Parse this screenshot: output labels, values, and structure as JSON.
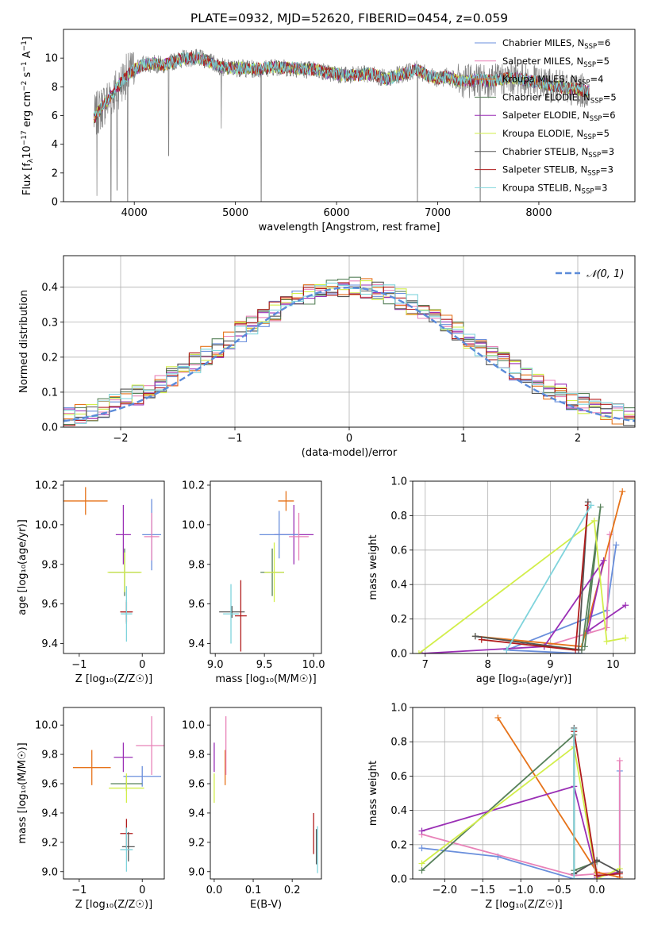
{
  "title": "PLATE=0932, MJD=52620, FIBERID=0454, z=0.059",
  "colors": {
    "chabrier_miles": "#6a8fdc",
    "salpeter_miles": "#e882b8",
    "kroupa_miles": "#e6731a",
    "chabrier_elodie": "#57815a",
    "salpeter_elodie": "#9a2fb5",
    "kroupa_elodie": "#d2ee4a",
    "chabrier_stelib": "#555555",
    "salpeter_stelib": "#b01c1c",
    "kroupa_stelib": "#7fd4dc",
    "data": "#808080",
    "normal": "#5b8bd9"
  },
  "chart_data": [
    {
      "id": "spectrum",
      "type": "line",
      "title": "PLATE=0932, MJD=52620, FIBERID=0454, z=0.059",
      "xlabel": "wavelength [Angstrom, rest frame]",
      "ylabel_parts": [
        "Flux [f",
        "λ",
        "10",
        "−17",
        " erg cm",
        "−2",
        " s",
        "−1",
        " A",
        "−1",
        "]"
      ],
      "xlim": [
        3300,
        8950
      ],
      "ylim": [
        0,
        12
      ],
      "xticks": [
        "4000",
        "5000",
        "6000",
        "7000",
        "8000"
      ],
      "yticks": [
        "0",
        "2",
        "4",
        "6",
        "8",
        "10"
      ],
      "legend_position": "right",
      "legend": [
        {
          "name": "Chabrier MILES",
          "n": "6",
          "color": "#6a8fdc"
        },
        {
          "name": "Salpeter MILES",
          "n": "5",
          "color": "#e882b8"
        },
        {
          "name": "Kroupa MILES",
          "n": "4",
          "color": "#e6731a"
        },
        {
          "name": "Chabrier ELODIE",
          "n": "5",
          "color": "#57815a"
        },
        {
          "name": "Salpeter ELODIE",
          "n": "6",
          "color": "#9a2fb5"
        },
        {
          "name": "Kroupa ELODIE",
          "n": "5",
          "color": "#d2ee4a"
        },
        {
          "name": "Chabrier STELIB",
          "n": "3",
          "color": "#555555"
        },
        {
          "name": "Salpeter STELIB",
          "n": "3",
          "color": "#b01c1c"
        },
        {
          "name": "Kroupa STELIB",
          "n": "3",
          "color": "#7fd4dc"
        }
      ],
      "continuum": [
        [
          3600,
          5.8
        ],
        [
          3700,
          6.8
        ],
        [
          3800,
          7.6
        ],
        [
          3900,
          8.6
        ],
        [
          4000,
          9.2
        ],
        [
          4100,
          9.6
        ],
        [
          4200,
          9.6
        ],
        [
          4300,
          9.5
        ],
        [
          4400,
          9.8
        ],
        [
          4500,
          10.0
        ],
        [
          4600,
          10.0
        ],
        [
          4700,
          9.9
        ],
        [
          4800,
          9.6
        ],
        [
          4900,
          9.3
        ],
        [
          5000,
          9.3
        ],
        [
          5100,
          9.3
        ],
        [
          5200,
          9.2
        ],
        [
          5300,
          9.3
        ],
        [
          5400,
          9.4
        ],
        [
          5500,
          9.3
        ],
        [
          5600,
          9.3
        ],
        [
          5700,
          9.2
        ],
        [
          5800,
          9.2
        ],
        [
          5900,
          9.0
        ],
        [
          6000,
          8.9
        ],
        [
          6100,
          8.8
        ],
        [
          6200,
          8.8
        ],
        [
          6300,
          8.9
        ],
        [
          6400,
          8.8
        ],
        [
          6500,
          8.5
        ],
        [
          6600,
          8.8
        ],
        [
          6700,
          9.0
        ],
        [
          6800,
          9.2
        ],
        [
          6900,
          8.8
        ],
        [
          7000,
          8.6
        ],
        [
          7100,
          8.7
        ],
        [
          7200,
          8.4
        ],
        [
          7300,
          8.4
        ],
        [
          7400,
          8.5
        ],
        [
          7500,
          8.4
        ],
        [
          7600,
          8.5
        ],
        [
          7700,
          8.6
        ],
        [
          7800,
          8.6
        ],
        [
          7900,
          8.4
        ],
        [
          8000,
          8.3
        ],
        [
          8100,
          8.1
        ],
        [
          8200,
          8.0
        ],
        [
          8300,
          7.9
        ],
        [
          8400,
          7.8
        ],
        [
          8500,
          7.6
        ]
      ],
      "dips": [
        [
          3630,
          0.4
        ],
        [
          3770,
          0.0
        ],
        [
          3830,
          0.8
        ],
        [
          3935,
          0.0
        ],
        [
          4340,
          3.2
        ],
        [
          4860,
          5.1
        ],
        [
          5255,
          0.0
        ],
        [
          6800,
          0.0
        ],
        [
          7420,
          0.0
        ]
      ]
    },
    {
      "id": "residuals",
      "type": "histogram",
      "xlabel": "(data-model)/error",
      "ylabel": "Normed distribution",
      "xlim": [
        -2.5,
        2.5
      ],
      "ylim": [
        0,
        0.49
      ],
      "xticks": [
        "−2",
        "−1",
        "0",
        "1",
        "2"
      ],
      "yticks": [
        "0.0",
        "0.1",
        "0.2",
        "0.3",
        "0.4"
      ],
      "grid": true,
      "legend_position": "top-right",
      "legend_label": "𝒩(0, 1)",
      "bin_width": 0.1,
      "normal_curve": {
        "mean": 0,
        "sigma": 1
      }
    },
    {
      "id": "age-vs-Z",
      "type": "errorbar",
      "xlabel": "Z [log₁₀(Z/Z☉)]",
      "ylabel": "age  [log₁₀(age/yr)]",
      "xlim": [
        -1.25,
        0.35
      ],
      "ylim": [
        9.35,
        10.22
      ],
      "xticks": [
        "−1",
        "0"
      ],
      "yticks": [
        "9.4",
        "9.6",
        "9.8",
        "10.0",
        "10.2"
      ],
      "points": [
        {
          "series": "Kroupa MILES",
          "x": -0.9,
          "y": 10.12,
          "xerr": 0.35,
          "yerr": 0.07
        },
        {
          "series": "Salpeter ELODIE",
          "x": -0.3,
          "y": 9.95,
          "xerr": 0.12,
          "yerr": 0.15
        },
        {
          "series": "Chabrier MILES",
          "x": 0.15,
          "y": 9.95,
          "xerr": 0.15,
          "yerr": 0.18
        },
        {
          "series": "Salpeter MILES",
          "x": 0.15,
          "y": 9.94,
          "xerr": 0.12,
          "yerr": 0.12
        },
        {
          "series": "Chabrier ELODIE",
          "x": -0.28,
          "y": 9.76,
          "xerr": 0.25,
          "yerr": 0.12
        },
        {
          "series": "Kroupa ELODIE",
          "x": -0.28,
          "y": 9.76,
          "xerr": 0.27,
          "yerr": 0.1
        },
        {
          "series": "Chabrier STELIB",
          "x": -0.25,
          "y": 9.56,
          "xerr": 0.09,
          "yerr": 0.06
        },
        {
          "series": "Salpeter STELIB",
          "x": -0.25,
          "y": 9.56,
          "xerr": 0.1,
          "yerr": 0.05
        },
        {
          "series": "Kroupa STELIB",
          "x": -0.25,
          "y": 9.55,
          "xerr": 0.09,
          "yerr": 0.14
        }
      ]
    },
    {
      "id": "age-vs-mass",
      "type": "errorbar",
      "xlabel": "mass [log₁₀(M/M☉)]",
      "xlim": [
        8.95,
        10.08
      ],
      "ylim": [
        9.35,
        10.22
      ],
      "xticks": [
        "9.0",
        "9.5",
        "10.0"
      ],
      "yticks": [
        "9.4",
        "9.6",
        "9.8",
        "10.0",
        "10.2"
      ],
      "points": [
        {
          "series": "Kroupa MILES",
          "x": 9.72,
          "y": 10.12,
          "xerr": 0.08,
          "yerr": 0.05
        },
        {
          "series": "Salpeter ELODIE",
          "x": 9.8,
          "y": 9.95,
          "xerr": 0.2,
          "yerr": 0.15
        },
        {
          "series": "Chabrier MILES",
          "x": 9.65,
          "y": 9.95,
          "xerr": 0.2,
          "yerr": 0.12
        },
        {
          "series": "Salpeter MILES",
          "x": 9.85,
          "y": 9.94,
          "xerr": 0.1,
          "yerr": 0.12
        },
        {
          "series": "Chabrier ELODIE",
          "x": 9.58,
          "y": 9.76,
          "xerr": 0.12,
          "yerr": 0.12
        },
        {
          "series": "Kroupa ELODIE",
          "x": 9.6,
          "y": 9.76,
          "xerr": 0.1,
          "yerr": 0.15
        },
        {
          "series": "Chabrier STELIB",
          "x": 9.17,
          "y": 9.56,
          "xerr": 0.13,
          "yerr": 0.03
        },
        {
          "series": "Salpeter STELIB",
          "x": 9.26,
          "y": 9.54,
          "xerr": 0.06,
          "yerr": 0.18
        },
        {
          "series": "Kroupa STELIB",
          "x": 9.16,
          "y": 9.55,
          "xerr": 0.08,
          "yerr": 0.15
        }
      ]
    },
    {
      "id": "weight-vs-age",
      "type": "line",
      "xlabel": "age  [log₁₀(age/yr)]",
      "ylabel": "mass weight",
      "xlim": [
        6.8,
        10.35
      ],
      "ylim": [
        0,
        1.0
      ],
      "xticks": [
        "7",
        "8",
        "9",
        "10"
      ],
      "yticks": [
        "0.0",
        "0.2",
        "0.4",
        "0.6",
        "0.8",
        "1.0"
      ],
      "grid": true,
      "series": [
        {
          "name": "Chabrier MILES",
          "x": [
            9.5,
            8.3,
            9.9,
            10.05
          ],
          "y": [
            0.0,
            0.02,
            0.25,
            0.63
          ]
        },
        {
          "name": "Salpeter MILES",
          "x": [
            9.5,
            8.9,
            9.9,
            9.95
          ],
          "y": [
            0.02,
            0.04,
            0.15,
            0.69
          ]
        },
        {
          "name": "Kroupa MILES",
          "x": [
            7.8,
            9.5,
            10.15
          ],
          "y": [
            0.1,
            0.04,
            0.94
          ]
        },
        {
          "name": "Chabrier ELODIE",
          "x": [
            7.8,
            9.5,
            9.8,
            9.55
          ],
          "y": [
            0.1,
            0.02,
            0.85,
            0.04
          ]
        },
        {
          "name": "Salpeter ELODIE",
          "x": [
            6.95,
            8.9,
            9.85,
            9.6,
            10.2
          ],
          "y": [
            0.0,
            0.04,
            0.54,
            0.13,
            0.28
          ]
        },
        {
          "name": "Kroupa ELODIE",
          "x": [
            6.9,
            9.7,
            9.9,
            10.2
          ],
          "y": [
            0.0,
            0.77,
            0.07,
            0.09
          ]
        },
        {
          "name": "Chabrier STELIB",
          "x": [
            7.8,
            9.45,
            9.6
          ],
          "y": [
            0.1,
            0.02,
            0.88
          ]
        },
        {
          "name": "Salpeter STELIB",
          "x": [
            7.9,
            9.4,
            9.6
          ],
          "y": [
            0.08,
            0.02,
            0.86
          ]
        },
        {
          "name": "Kroupa STELIB",
          "x": [
            8.3,
            9.65
          ],
          "y": [
            0.02,
            0.86
          ]
        }
      ]
    },
    {
      "id": "mass-vs-Z",
      "type": "errorbar",
      "xlabel": "Z [log₁₀(Z/Z☉)]",
      "ylabel": "mass [log₁₀(M/M☉)]",
      "xlim": [
        -1.25,
        0.35
      ],
      "ylim": [
        8.95,
        10.12
      ],
      "xticks": [
        "−1",
        "0"
      ],
      "yticks": [
        "9.0",
        "9.2",
        "9.4",
        "9.6",
        "9.8",
        "10.0"
      ],
      "points": [
        {
          "series": "Kroupa MILES",
          "x": -0.8,
          "y": 9.71,
          "xerr": 0.3,
          "yerr": 0.12
        },
        {
          "series": "Salpeter ELODIE",
          "x": -0.3,
          "y": 9.78,
          "xerr": 0.15,
          "yerr": 0.1
        },
        {
          "series": "Salpeter MILES",
          "x": 0.15,
          "y": 9.86,
          "xerr": 0.25,
          "yerr": 0.2
        },
        {
          "series": "Chabrier MILES",
          "x": 0.0,
          "y": 9.65,
          "xerr": 0.3,
          "yerr": 0.07
        },
        {
          "series": "Chabrier ELODIE",
          "x": -0.25,
          "y": 9.6,
          "xerr": 0.25,
          "yerr": 0.05
        },
        {
          "series": "Kroupa ELODIE",
          "x": -0.25,
          "y": 9.57,
          "xerr": 0.28,
          "yerr": 0.1
        },
        {
          "series": "Salpeter STELIB",
          "x": -0.25,
          "y": 9.26,
          "xerr": 0.1,
          "yerr": 0.1
        },
        {
          "series": "Chabrier STELIB",
          "x": -0.22,
          "y": 9.17,
          "xerr": 0.1,
          "yerr": 0.1
        },
        {
          "series": "Kroupa STELIB",
          "x": -0.25,
          "y": 9.15,
          "xerr": 0.1,
          "yerr": 0.15
        }
      ]
    },
    {
      "id": "mass-vs-ebv",
      "type": "errorbar",
      "xlabel": "E(B-V)",
      "xlim": [
        -0.01,
        0.275
      ],
      "ylim": [
        8.95,
        10.12
      ],
      "xticks": [
        "0.0",
        "0.1",
        "0.2"
      ],
      "yticks": [
        "9.0",
        "9.2",
        "9.4",
        "9.6",
        "9.8",
        "10.0"
      ],
      "points": [
        {
          "series": "Salpeter ELODIE",
          "x": 0.0,
          "y": 9.78,
          "xerr": 0.0,
          "yerr": 0.1
        },
        {
          "series": "Kroupa ELODIE",
          "x": 0.0,
          "y": 9.57,
          "xerr": 0.0,
          "yerr": 0.1
        },
        {
          "series": "Kroupa MILES",
          "x": 0.028,
          "y": 9.71,
          "xerr": 0.0,
          "yerr": 0.12
        },
        {
          "series": "Salpeter MILES",
          "x": 0.03,
          "y": 9.86,
          "xerr": 0.0,
          "yerr": 0.2
        },
        {
          "series": "Salpeter STELIB",
          "x": 0.255,
          "y": 9.26,
          "xerr": 0.0,
          "yerr": 0.14
        },
        {
          "series": "Chabrier STELIB",
          "x": 0.262,
          "y": 9.17,
          "xerr": 0.0,
          "yerr": 0.12
        },
        {
          "series": "Kroupa STELIB",
          "x": 0.265,
          "y": 9.15,
          "xerr": 0.0,
          "yerr": 0.16
        }
      ]
    },
    {
      "id": "weight-vs-Z",
      "type": "line",
      "xlabel": "Z [log₁₀(Z/Z☉)]",
      "ylabel": "mass weight",
      "xlim": [
        -2.42,
        0.5
      ],
      "ylim": [
        0,
        1.0
      ],
      "xticks": [
        "−2.0",
        "−1.5",
        "−1.0",
        "−0.5",
        "0.0"
      ],
      "yticks": [
        "0.0",
        "0.2",
        "0.4",
        "0.6",
        "0.8",
        "1.0"
      ],
      "grid": true,
      "series": [
        {
          "name": "Chabrier MILES",
          "x": [
            -2.3,
            -1.3,
            -0.3,
            0.3,
            0.3
          ],
          "y": [
            0.18,
            0.13,
            0.0,
            0.0,
            0.63
          ]
        },
        {
          "name": "Salpeter MILES",
          "x": [
            -2.3,
            -0.3,
            0.3,
            0.3
          ],
          "y": [
            0.26,
            0.02,
            0.04,
            0.69
          ]
        },
        {
          "name": "Kroupa MILES",
          "x": [
            -1.3,
            0.0,
            0.3
          ],
          "y": [
            0.94,
            0.04,
            0.01
          ]
        },
        {
          "name": "Chabrier ELODIE",
          "x": [
            -2.3,
            -0.3,
            -0.3,
            0.0
          ],
          "y": [
            0.05,
            0.84,
            0.05,
            0.1
          ]
        },
        {
          "name": "Salpeter ELODIE",
          "x": [
            -2.3,
            -0.3,
            0.0,
            0.3
          ],
          "y": [
            0.28,
            0.54,
            0.01,
            0.04
          ]
        },
        {
          "name": "Kroupa ELODIE",
          "x": [
            -2.3,
            -0.3,
            0.0,
            0.3
          ],
          "y": [
            0.09,
            0.77,
            0.0,
            0.06
          ]
        },
        {
          "name": "Chabrier STELIB",
          "x": [
            -0.3,
            -0.3,
            0.0,
            0.3
          ],
          "y": [
            0.88,
            0.03,
            0.11,
            0.04
          ]
        },
        {
          "name": "Salpeter STELIB",
          "x": [
            -0.3,
            0.0,
            0.3
          ],
          "y": [
            0.86,
            0.02,
            0.03
          ]
        },
        {
          "name": "Kroupa STELIB",
          "x": [
            -0.3,
            -0.3
          ],
          "y": [
            0.87,
            0.0
          ]
        }
      ]
    }
  ]
}
